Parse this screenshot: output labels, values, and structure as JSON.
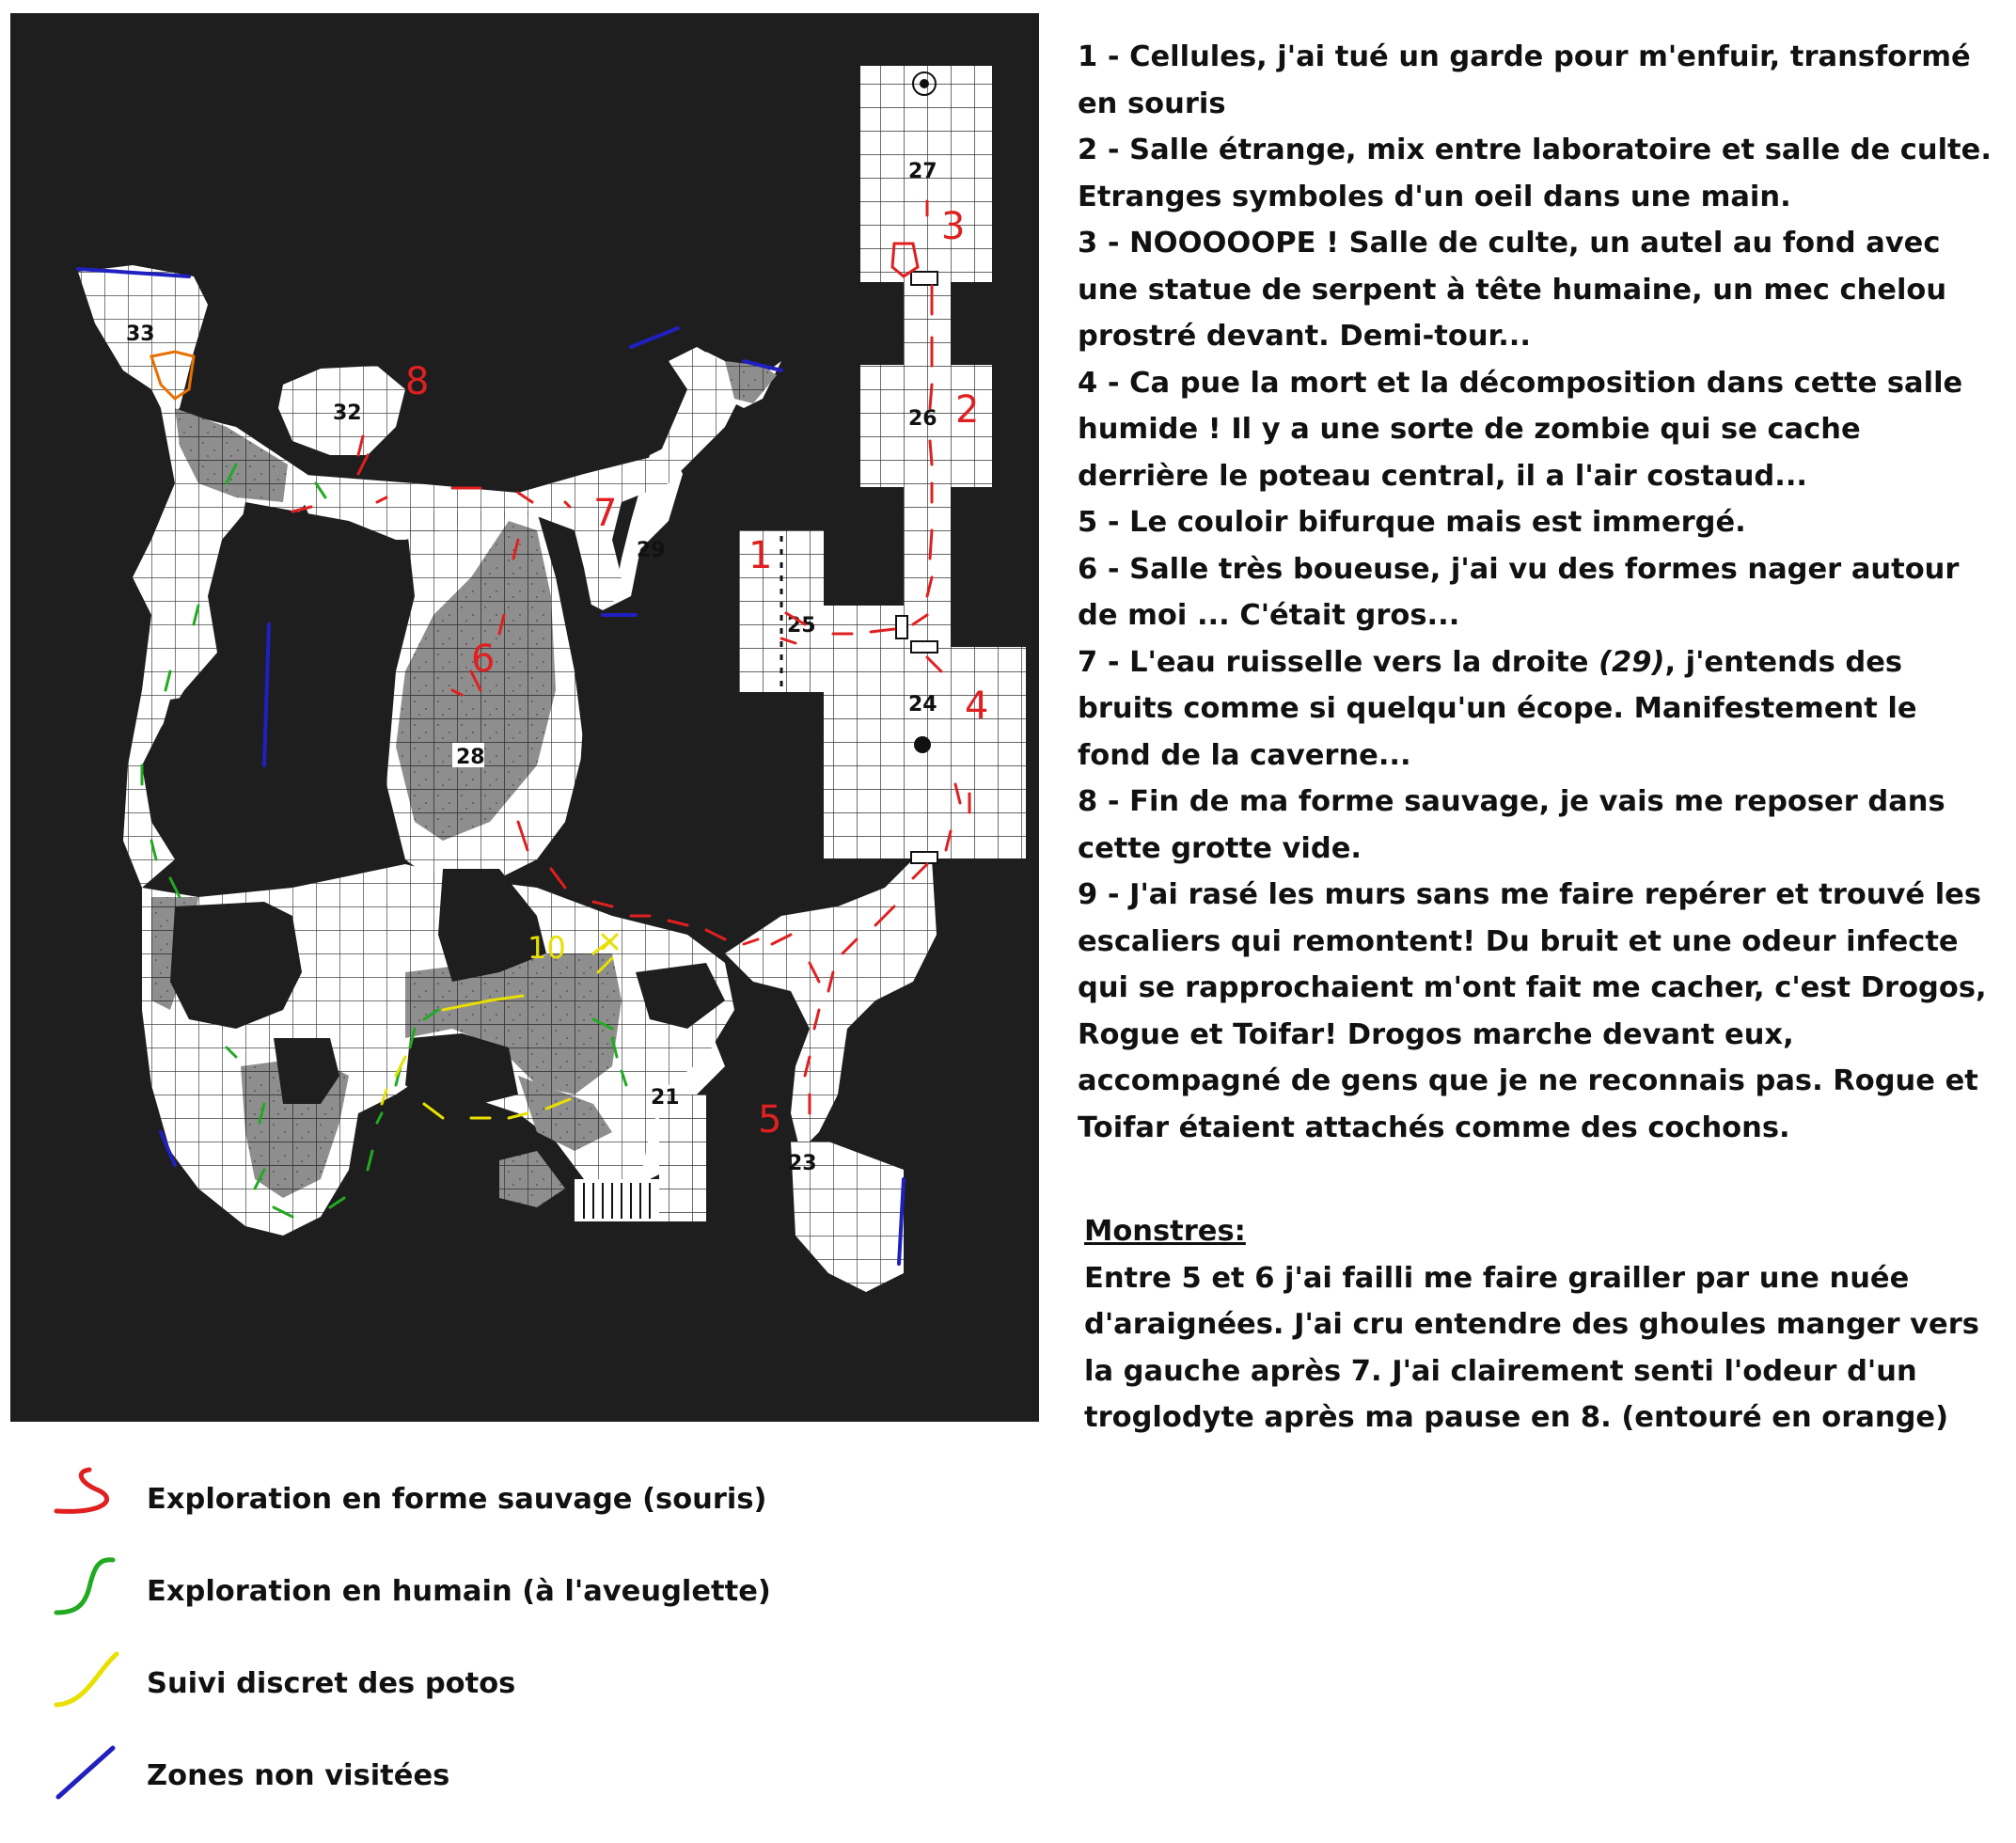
{
  "map": {
    "rooms": [
      "33",
      "32",
      "29",
      "27",
      "26",
      "25",
      "24",
      "28",
      "21",
      "23"
    ],
    "red_markers": [
      "1",
      "2",
      "3",
      "4",
      "5",
      "6",
      "7",
      "8"
    ],
    "yellow_marker": "10",
    "colors": {
      "background": "#1e1e1e",
      "floor": "#ffffff",
      "water": "#8e8e8e",
      "grid": "#333333",
      "red_path": "#e02020",
      "green_path": "#22aa22",
      "yellow_path": "#e8e000",
      "blue_unvisited": "#2020c0",
      "orange_circle": "#e87000"
    }
  },
  "notes": {
    "n1": "1 - Cellules, j'ai tué un garde pour m'enfuir, transformé en souris",
    "n2": "2 - Salle étrange, mix entre laboratoire et salle de culte. Etranges symboles d'un oeil dans une main.",
    "n3": "3 - NOOOOOPE ! Salle de culte, un autel au fond avec une statue de serpent à tête humaine, un mec chelou prostré devant. Demi-tour...",
    "n4": "4 - Ca pue la mort et la décomposition dans cette salle humide ! Il y a une sorte de zombie qui se cache derrière le poteau central, il a l'air costaud...",
    "n5": "5 - Le couloir bifurque mais est immergé.",
    "n6": "6 - Salle très boueuse, j'ai vu des formes nager autour de moi ... C'était gros...",
    "n7_a": "7 - L'eau ruisselle vers la droite ",
    "n7_b": "(29)",
    "n7_c": ", j'entends des bruits comme si quelqu'un écope. Manifestement le fond de la caverne...",
    "n8": "8 - Fin de ma forme sauvage, je vais me reposer dans cette grotte vide.",
    "n9": "9 - J'ai rasé les murs sans me faire repérer et trouvé les escaliers qui remontent! Du bruit et une odeur infecte qui se rapprochaient m'ont fait me cacher, c'est Drogos, Rogue et Toifar! Drogos marche devant eux, accompagné de gens que je ne reconnais pas. Rogue et Toifar étaient attachés comme des cochons."
  },
  "monsters": {
    "title": "Monstres:",
    "text": "Entre 5 et 6 j'ai failli me faire grailler par une nuée d'araignées. J'ai cru entendre des ghoules manger vers la gauche après 7. J'ai clairement senti l'odeur d'un troglodyte après ma pause en 8. (entouré en orange)"
  },
  "legend": {
    "items": [
      {
        "label": "Exploration en forme sauvage (souris)",
        "color": "#e02020"
      },
      {
        "label": "Exploration en humain (à l'aveuglette)",
        "color": "#22aa22"
      },
      {
        "label": "Suivi discret des potos",
        "color": "#e8e000"
      },
      {
        "label": "Zones non visitées",
        "color": "#2020c0"
      }
    ]
  }
}
